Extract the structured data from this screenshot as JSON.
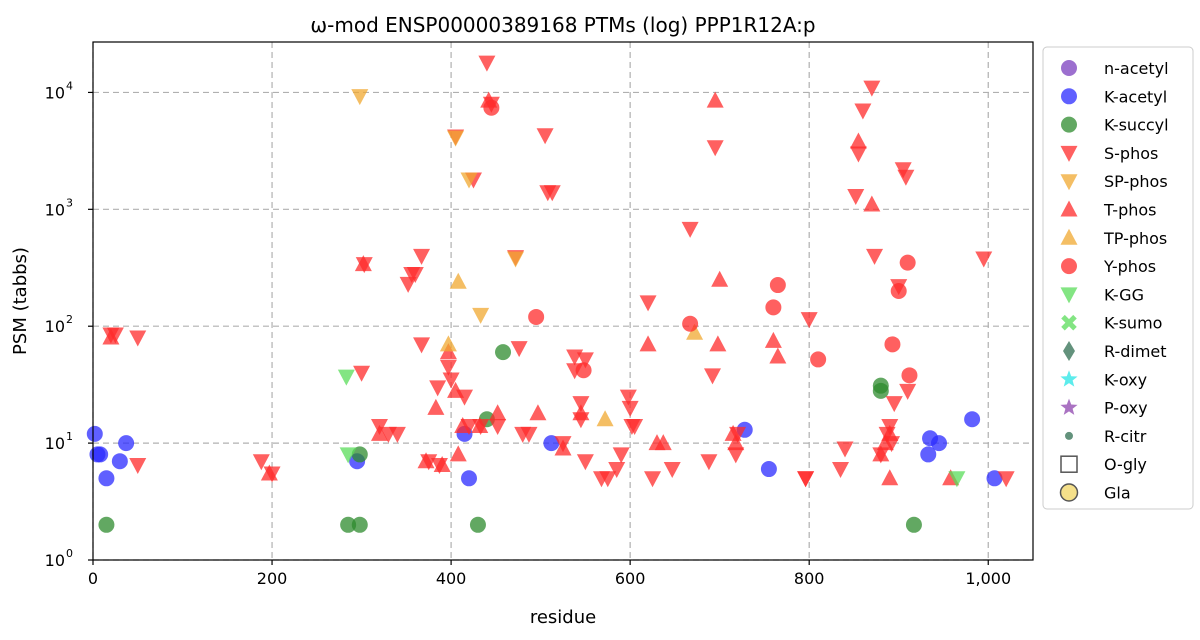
{
  "chart_data": {
    "type": "scatter",
    "title": "ω-mod ENSP00000389168 PTMs (log) PPP1R12A:p",
    "xlabel": "residue",
    "ylabel": "PSM (tabbs)",
    "xlim": [
      0,
      1050
    ],
    "ylim": [
      1,
      27000
    ],
    "yscale": "log",
    "grid": true,
    "legend_position": "outside-right",
    "x_ticks": [
      {
        "value": 0,
        "label": "0"
      },
      {
        "value": 200,
        "label": "200"
      },
      {
        "value": 400,
        "label": "400"
      },
      {
        "value": 600,
        "label": "600"
      },
      {
        "value": 800,
        "label": "800"
      },
      {
        "value": 1000,
        "label": "1,000"
      }
    ],
    "y_ticks": [
      {
        "value": 1,
        "base": "10",
        "exp": "0"
      },
      {
        "value": 10,
        "base": "10",
        "exp": "1"
      },
      {
        "value": 100,
        "base": "10",
        "exp": "2"
      },
      {
        "value": 1000,
        "base": "10",
        "exp": "3"
      },
      {
        "value": 10000,
        "base": "10",
        "exp": "4"
      }
    ],
    "series": [
      {
        "name": "n-acetyl",
        "marker": "circle",
        "color": "#7b3fbf",
        "points": []
      },
      {
        "name": "K-acetyl",
        "marker": "circle",
        "color": "#2b2bff",
        "points": [
          [
            2,
            12
          ],
          [
            5,
            8
          ],
          [
            8,
            8
          ],
          [
            15,
            5
          ],
          [
            30,
            7
          ],
          [
            37,
            10
          ],
          [
            295,
            7
          ],
          [
            415,
            12
          ],
          [
            420,
            5
          ],
          [
            512,
            10
          ],
          [
            728,
            13
          ],
          [
            755,
            6
          ],
          [
            933,
            8
          ],
          [
            935,
            11
          ],
          [
            945,
            10
          ],
          [
            982,
            16
          ],
          [
            1007,
            5
          ]
        ]
      },
      {
        "name": "K-succyl",
        "marker": "circle",
        "color": "#2e8b2e",
        "points": [
          [
            15,
            2
          ],
          [
            285,
            2
          ],
          [
            298,
            2
          ],
          [
            298,
            8
          ],
          [
            430,
            2
          ],
          [
            440,
            16
          ],
          [
            458,
            60
          ],
          [
            880,
            31
          ],
          [
            880,
            28
          ],
          [
            917,
            2
          ]
        ]
      },
      {
        "name": "S-phos",
        "marker": "triangle-down",
        "color": "#ff2b2b",
        "points": [
          [
            20,
            85
          ],
          [
            25,
            85
          ],
          [
            50,
            80
          ],
          [
            50,
            6.5
          ],
          [
            188,
            7
          ],
          [
            200,
            5.5
          ],
          [
            300,
            40
          ],
          [
            303,
            340
          ],
          [
            320,
            14
          ],
          [
            330,
            12
          ],
          [
            340,
            12
          ],
          [
            352,
            230
          ],
          [
            356,
            280
          ],
          [
            360,
            280
          ],
          [
            367,
            400
          ],
          [
            367,
            70
          ],
          [
            375,
            7
          ],
          [
            385,
            30
          ],
          [
            387,
            6.5
          ],
          [
            397,
            45
          ],
          [
            400,
            35
          ],
          [
            405,
            4200
          ],
          [
            415,
            25
          ],
          [
            420,
            14
          ],
          [
            425,
            1800
          ],
          [
            433,
            14
          ],
          [
            440,
            18000
          ],
          [
            445,
            8000
          ],
          [
            452,
            14
          ],
          [
            472,
            390
          ],
          [
            476,
            65
          ],
          [
            480,
            12
          ],
          [
            487,
            12
          ],
          [
            505,
            4300
          ],
          [
            508,
            1400
          ],
          [
            513,
            1400
          ],
          [
            525,
            10
          ],
          [
            538,
            55
          ],
          [
            538,
            42
          ],
          [
            545,
            22
          ],
          [
            545,
            16
          ],
          [
            550,
            52
          ],
          [
            550,
            7
          ],
          [
            568,
            5
          ],
          [
            575,
            5
          ],
          [
            585,
            6
          ],
          [
            590,
            8
          ],
          [
            598,
            25
          ],
          [
            600,
            20
          ],
          [
            602,
            14
          ],
          [
            605,
            14
          ],
          [
            620,
            160
          ],
          [
            625,
            5
          ],
          [
            647,
            6
          ],
          [
            667,
            680
          ],
          [
            688,
            7
          ],
          [
            692,
            38
          ],
          [
            695,
            3400
          ],
          [
            718,
            8
          ],
          [
            720,
            12
          ],
          [
            796,
            5
          ],
          [
            796,
            5
          ],
          [
            800,
            115
          ],
          [
            835,
            6
          ],
          [
            840,
            9
          ],
          [
            852,
            1300
          ],
          [
            855,
            3000
          ],
          [
            860,
            7000
          ],
          [
            870,
            11000
          ],
          [
            873,
            400
          ],
          [
            880,
            8
          ],
          [
            887,
            12
          ],
          [
            890,
            14
          ],
          [
            892,
            10
          ],
          [
            895,
            22
          ],
          [
            900,
            220
          ],
          [
            905,
            2200
          ],
          [
            908,
            1900
          ],
          [
            910,
            28
          ],
          [
            995,
            380
          ],
          [
            1020,
            5
          ]
        ]
      },
      {
        "name": "SP-phos",
        "marker": "triangle-down",
        "color": "#f0a830",
        "points": [
          [
            298,
            9300
          ],
          [
            405,
            4100
          ],
          [
            420,
            1800
          ],
          [
            433,
            125
          ],
          [
            472,
            380
          ]
        ]
      },
      {
        "name": "T-phos",
        "marker": "triangle-up",
        "color": "#ff2b2b",
        "points": [
          [
            20,
            80
          ],
          [
            197,
            5.5
          ],
          [
            302,
            340
          ],
          [
            320,
            12
          ],
          [
            372,
            7
          ],
          [
            383,
            20
          ],
          [
            390,
            6.5
          ],
          [
            397,
            60
          ],
          [
            405,
            28
          ],
          [
            408,
            8
          ],
          [
            413,
            14
          ],
          [
            432,
            14
          ],
          [
            442,
            8500
          ],
          [
            452,
            18
          ],
          [
            497,
            18
          ],
          [
            525,
            9
          ],
          [
            545,
            18
          ],
          [
            620,
            70
          ],
          [
            630,
            10
          ],
          [
            637,
            10
          ],
          [
            695,
            8500
          ],
          [
            698,
            70
          ],
          [
            700,
            250
          ],
          [
            715,
            12
          ],
          [
            718,
            10
          ],
          [
            760,
            75
          ],
          [
            765,
            55
          ],
          [
            855,
            3800
          ],
          [
            870,
            1100
          ],
          [
            880,
            8
          ],
          [
            885,
            10
          ],
          [
            890,
            5
          ],
          [
            890,
            12
          ],
          [
            958,
            5
          ]
        ]
      },
      {
        "name": "TP-phos",
        "marker": "triangle-up",
        "color": "#f0a830",
        "points": [
          [
            397,
            70
          ],
          [
            408,
            240
          ],
          [
            572,
            16
          ],
          [
            672,
            88
          ]
        ]
      },
      {
        "name": "Y-phos",
        "marker": "circle",
        "color": "#ff2b2b",
        "points": [
          [
            445,
            7400
          ],
          [
            495,
            120
          ],
          [
            548,
            42
          ],
          [
            667,
            105
          ],
          [
            760,
            145
          ],
          [
            765,
            225
          ],
          [
            810,
            52
          ],
          [
            893,
            70
          ],
          [
            900,
            200
          ],
          [
            910,
            350
          ],
          [
            912,
            38
          ]
        ]
      },
      {
        "name": "K-GG",
        "marker": "triangle-down",
        "color": "#5adc5a",
        "points": [
          [
            283,
            37
          ],
          [
            285,
            8
          ],
          [
            965,
            5
          ]
        ]
      },
      {
        "name": "K-sumo",
        "marker": "x",
        "color": "#5adc5a",
        "points": []
      },
      {
        "name": "R-dimet",
        "marker": "diamond",
        "color": "#2f6e50",
        "points": []
      },
      {
        "name": "K-oxy",
        "marker": "star",
        "color": "#27e6e6",
        "points": []
      },
      {
        "name": "P-oxy",
        "marker": "star",
        "color": "#8e44ad",
        "points": []
      },
      {
        "name": "R-citr",
        "marker": "small-circle",
        "color": "#2f6e50",
        "points": []
      },
      {
        "name": "O-gly",
        "marker": "square-open",
        "color": "#555555",
        "points": []
      },
      {
        "name": "Gla",
        "marker": "circle-open",
        "color": "#f5e08a",
        "points": []
      }
    ]
  }
}
